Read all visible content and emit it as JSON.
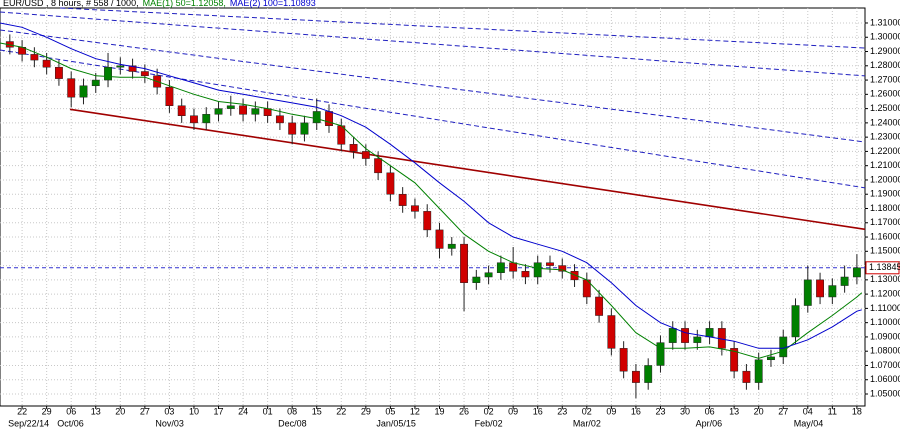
{
  "chart_data": {
    "type": "candlestick",
    "header": [
      {
        "text": "EUR/USD , 8 hours, # 558 / 1000,",
        "color": "#000000"
      },
      {
        "text": "MAE(1) 50=1.12058,",
        "color": "#008000"
      },
      {
        "text": "MAE(2) 100=1.10893",
        "color": "#0000cc"
      }
    ],
    "up_color": "#008000",
    "down_color": "#d00000",
    "x": [
      -0.5,
      0,
      0.5,
      1,
      1.5,
      2,
      2.5,
      3,
      3.5,
      4,
      4.5,
      5,
      5.5,
      6,
      6.5,
      7,
      7.5,
      8,
      8.5,
      9,
      9.5,
      10,
      10.5,
      11,
      11.5,
      12,
      12.5,
      13,
      13.5,
      14,
      14.5,
      15,
      15.5,
      16,
      16.5,
      17,
      17.5,
      18,
      18.5,
      19,
      19.5,
      20,
      20.5,
      21,
      21.5,
      22,
      22.5,
      23,
      23.5,
      24,
      24.5,
      25,
      25.5,
      26,
      26.5,
      27,
      27.5,
      28,
      28.5,
      29,
      29.5,
      30,
      30.5,
      31,
      31.5,
      32,
      32.5,
      33,
      33.5,
      34
    ],
    "open": [
      1.297,
      1.293,
      1.288,
      1.284,
      1.279,
      1.271,
      1.258,
      1.266,
      1.27,
      1.279,
      1.28,
      1.276,
      1.273,
      1.265,
      1.252,
      1.245,
      1.24,
      1.246,
      1.25,
      1.252,
      1.246,
      1.25,
      1.245,
      1.24,
      1.232,
      1.24,
      1.248,
      1.238,
      1.225,
      1.22,
      1.215,
      1.205,
      1.19,
      1.182,
      1.178,
      1.165,
      1.152,
      1.155,
      1.128,
      1.132,
      1.135,
      1.142,
      1.136,
      1.132,
      1.142,
      1.14,
      1.136,
      1.13,
      1.118,
      1.105,
      1.082,
      1.066,
      1.058,
      1.07,
      1.086,
      1.096,
      1.086,
      1.09,
      1.096,
      1.082,
      1.066,
      1.058,
      1.074,
      1.076,
      1.09,
      1.112,
      1.13,
      1.118,
      1.126,
      1.132
    ],
    "high": [
      1.302,
      1.298,
      1.293,
      1.289,
      1.284,
      1.276,
      1.271,
      1.275,
      1.289,
      1.286,
      1.285,
      1.281,
      1.278,
      1.27,
      1.257,
      1.25,
      1.251,
      1.255,
      1.259,
      1.257,
      1.255,
      1.255,
      1.25,
      1.245,
      1.245,
      1.257,
      1.253,
      1.243,
      1.23,
      1.225,
      1.22,
      1.21,
      1.195,
      1.187,
      1.183,
      1.17,
      1.16,
      1.16,
      1.137,
      1.14,
      1.147,
      1.153,
      1.141,
      1.147,
      1.147,
      1.145,
      1.141,
      1.135,
      1.123,
      1.11,
      1.087,
      1.071,
      1.075,
      1.091,
      1.101,
      1.101,
      1.095,
      1.101,
      1.101,
      1.087,
      1.071,
      1.079,
      1.081,
      1.095,
      1.117,
      1.14,
      1.135,
      1.131,
      1.14,
      1.148
    ],
    "low": [
      1.288,
      1.283,
      1.279,
      1.274,
      1.266,
      1.251,
      1.253,
      1.261,
      1.265,
      1.274,
      1.271,
      1.268,
      1.26,
      1.247,
      1.24,
      1.235,
      1.235,
      1.241,
      1.245,
      1.241,
      1.241,
      1.24,
      1.235,
      1.225,
      1.227,
      1.235,
      1.233,
      1.22,
      1.215,
      1.21,
      1.2,
      1.185,
      1.177,
      1.173,
      1.16,
      1.145,
      1.147,
      1.108,
      1.123,
      1.127,
      1.13,
      1.131,
      1.127,
      1.127,
      1.135,
      1.131,
      1.125,
      1.113,
      1.1,
      1.077,
      1.061,
      1.047,
      1.053,
      1.065,
      1.081,
      1.081,
      1.081,
      1.085,
      1.077,
      1.061,
      1.053,
      1.053,
      1.069,
      1.071,
      1.085,
      1.107,
      1.113,
      1.113,
      1.121,
      1.127
    ],
    "close": [
      1.293,
      1.288,
      1.284,
      1.279,
      1.271,
      1.258,
      1.266,
      1.27,
      1.279,
      1.28,
      1.276,
      1.273,
      1.265,
      1.252,
      1.245,
      1.24,
      1.246,
      1.25,
      1.252,
      1.246,
      1.25,
      1.245,
      1.24,
      1.232,
      1.24,
      1.248,
      1.238,
      1.225,
      1.22,
      1.215,
      1.205,
      1.19,
      1.182,
      1.178,
      1.165,
      1.152,
      1.155,
      1.128,
      1.132,
      1.135,
      1.142,
      1.136,
      1.132,
      1.142,
      1.14,
      1.136,
      1.13,
      1.118,
      1.105,
      1.082,
      1.066,
      1.058,
      1.07,
      1.086,
      1.096,
      1.086,
      1.09,
      1.096,
      1.082,
      1.066,
      1.058,
      1.074,
      1.076,
      1.09,
      1.112,
      1.13,
      1.118,
      1.126,
      1.132,
      1.13845
    ],
    "moving_averages": [
      {
        "color": "#008000",
        "x": [
          -0.9,
          0,
          1,
          2,
          3,
          4,
          5,
          6,
          7,
          8,
          9,
          10,
          11,
          12,
          13,
          14,
          15,
          16,
          17,
          18,
          19,
          20,
          21,
          22,
          23,
          24,
          25,
          26,
          27,
          28,
          29,
          30,
          31,
          32,
          33,
          34,
          34.2
        ],
        "values": [
          1.296,
          1.293,
          1.286,
          1.278,
          1.273,
          1.272,
          1.272,
          1.266,
          1.26,
          1.255,
          1.253,
          1.25,
          1.246,
          1.243,
          1.238,
          1.222,
          1.21,
          1.198,
          1.18,
          1.162,
          1.15,
          1.142,
          1.138,
          1.137,
          1.13,
          1.112,
          1.093,
          1.082,
          1.082,
          1.083,
          1.08,
          1.075,
          1.08,
          1.093,
          1.105,
          1.118,
          1.121
        ]
      },
      {
        "color": "#0000cc",
        "x": [
          -0.9,
          0,
          1,
          2,
          3,
          4,
          5,
          6,
          7,
          8,
          9,
          10,
          11,
          12,
          13,
          14,
          15,
          16,
          17,
          18,
          19,
          20,
          21,
          22,
          23,
          24,
          25,
          26,
          27,
          28,
          29,
          30,
          31,
          32,
          33,
          34,
          34.2
        ],
        "values": [
          1.31,
          1.307,
          1.3,
          1.292,
          1.285,
          1.281,
          1.278,
          1.273,
          1.268,
          1.263,
          1.26,
          1.257,
          1.254,
          1.251,
          1.245,
          1.237,
          1.225,
          1.212,
          1.198,
          1.185,
          1.17,
          1.16,
          1.155,
          1.15,
          1.142,
          1.128,
          1.112,
          1.1,
          1.093,
          1.09,
          1.087,
          1.082,
          1.082,
          1.088,
          1.097,
          1.108,
          1.109
        ]
      }
    ],
    "trend_lines": [
      {
        "color": "#a00000",
        "dashed": false,
        "x": [
          1.95,
          34.33
        ],
        "values": [
          1.2495,
          1.1654
        ]
      },
      {
        "color": "#2020c0",
        "dashed": true,
        "x": [
          1.55,
          34.33
        ],
        "values": [
          1.3205,
          1.2925
        ]
      },
      {
        "color": "#2020c0",
        "dashed": true,
        "x": [
          -0.9,
          34.33
        ],
        "values": [
          1.3177,
          1.2729
        ]
      },
      {
        "color": "#2020c0",
        "dashed": true,
        "x": [
          -0.9,
          34.33
        ],
        "values": [
          1.3051,
          1.2266
        ]
      },
      {
        "color": "#2020c0",
        "dashed": true,
        "x": [
          -0.9,
          34.33
        ],
        "values": [
          1.2911,
          1.1944
        ]
      }
    ],
    "last_price": {
      "value": 1.13845,
      "label": "1.13845"
    },
    "xlim": [
      -0.9,
      34.33
    ],
    "ylim": [
      1.0416,
      1.3205
    ],
    "grid": true,
    "xticks": [
      {
        "value": 0,
        "label": "22"
      },
      {
        "value": 1,
        "label": "29"
      },
      {
        "value": 2,
        "label": "06"
      },
      {
        "value": 3,
        "label": "13"
      },
      {
        "value": 4,
        "label": "20"
      },
      {
        "value": 5,
        "label": "27"
      },
      {
        "value": 6,
        "label": "03"
      },
      {
        "value": 7,
        "label": "10"
      },
      {
        "value": 8,
        "label": "17"
      },
      {
        "value": 9,
        "label": "24"
      },
      {
        "value": 10,
        "label": "01"
      },
      {
        "value": 11,
        "label": "08"
      },
      {
        "value": 12,
        "label": "15"
      },
      {
        "value": 13,
        "label": "22"
      },
      {
        "value": 14,
        "label": "29"
      },
      {
        "value": 15,
        "label": "05"
      },
      {
        "value": 16,
        "label": "12"
      },
      {
        "value": 17,
        "label": "19"
      },
      {
        "value": 18,
        "label": "26"
      },
      {
        "value": 19,
        "label": "02"
      },
      {
        "value": 20,
        "label": "09"
      },
      {
        "value": 21,
        "label": "16"
      },
      {
        "value": 22,
        "label": "23"
      },
      {
        "value": 23,
        "label": "02"
      },
      {
        "value": 24,
        "label": "09"
      },
      {
        "value": 25,
        "label": "16"
      },
      {
        "value": 26,
        "label": "23"
      },
      {
        "value": 27,
        "label": "30"
      },
      {
        "value": 28,
        "label": "06"
      },
      {
        "value": 29,
        "label": "13"
      },
      {
        "value": 30,
        "label": "20"
      },
      {
        "value": 31,
        "label": "27"
      },
      {
        "value": 32,
        "label": "04"
      },
      {
        "value": 33,
        "label": "11"
      },
      {
        "value": 34,
        "label": "18"
      }
    ],
    "month_labels": [
      {
        "value": 0,
        "label": "Sep/22/14"
      },
      {
        "value": 2,
        "label": "Oct/06"
      },
      {
        "value": 6,
        "label": "Nov/03"
      },
      {
        "value": 11,
        "label": "Dec/08"
      },
      {
        "value": 15,
        "label": "Jan/05/15"
      },
      {
        "value": 19,
        "label": "Feb/02"
      },
      {
        "value": 23,
        "label": "Mar/02"
      },
      {
        "value": 28,
        "label": "Apr/06"
      },
      {
        "value": 32,
        "label": "May/04"
      }
    ],
    "yticks": [
      {
        "value": 1.05,
        "label": "1.05000"
      },
      {
        "value": 1.06,
        "label": "1.06000"
      },
      {
        "value": 1.07,
        "label": "1.07000"
      },
      {
        "value": 1.08,
        "label": "1.08000"
      },
      {
        "value": 1.09,
        "label": "1.09000"
      },
      {
        "value": 1.1,
        "label": "1.10000"
      },
      {
        "value": 1.11,
        "label": "1.11000"
      },
      {
        "value": 1.12,
        "label": "1.12000"
      },
      {
        "value": 1.13,
        "label": "1.13000"
      },
      {
        "value": 1.14,
        "label": "1.14000"
      },
      {
        "value": 1.15,
        "label": "1.15000"
      },
      {
        "value": 1.16,
        "label": "1.16000"
      },
      {
        "value": 1.17,
        "label": "1.17000"
      },
      {
        "value": 1.18,
        "label": "1.18000"
      },
      {
        "value": 1.19,
        "label": "1.19000"
      },
      {
        "value": 1.2,
        "label": "1.20000"
      },
      {
        "value": 1.21,
        "label": "1.21000"
      },
      {
        "value": 1.22,
        "label": "1.22000"
      },
      {
        "value": 1.23,
        "label": "1.23000"
      },
      {
        "value": 1.24,
        "label": "1.24000"
      },
      {
        "value": 1.25,
        "label": "1.25000"
      },
      {
        "value": 1.26,
        "label": "1.26000"
      },
      {
        "value": 1.27,
        "label": "1.27000"
      },
      {
        "value": 1.28,
        "label": "1.28000"
      },
      {
        "value": 1.29,
        "label": "1.29000"
      },
      {
        "value": 1.3,
        "label": "1.30000"
      },
      {
        "value": 1.31,
        "label": "1.31000"
      }
    ]
  }
}
